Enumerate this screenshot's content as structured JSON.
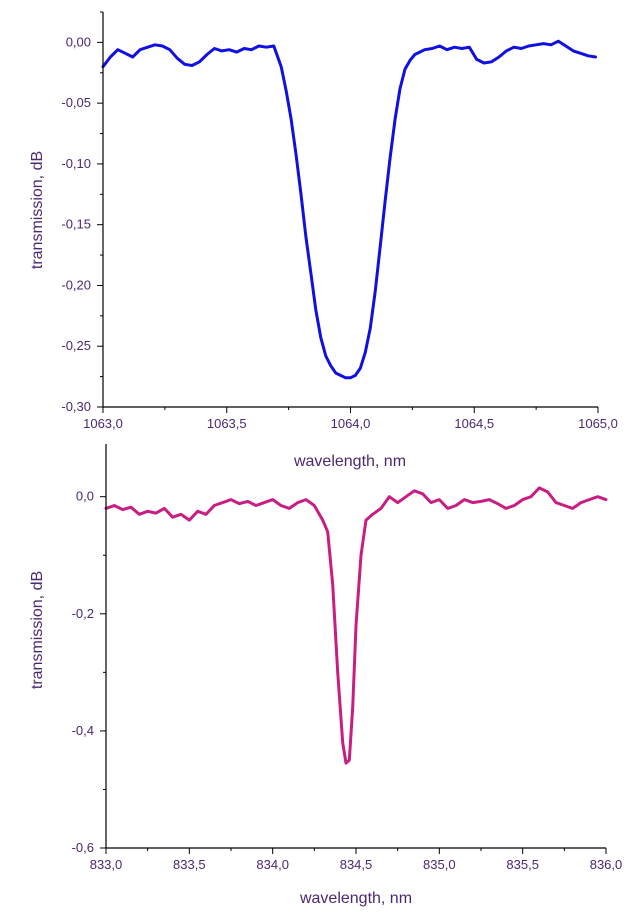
{
  "chart_data": [
    {
      "type": "line",
      "xlabel": "wavelength, nm",
      "ylabel": "transmission, dB",
      "xlim": [
        1063.0,
        1065.0
      ],
      "ylim": [
        -0.3,
        0.025
      ],
      "x_ticks": [
        "1063,0",
        "1063,5",
        "1064,0",
        "1064,5",
        "1065,0"
      ],
      "x_tick_values": [
        1063.0,
        1063.5,
        1064.0,
        1064.5,
        1065.0
      ],
      "y_ticks": [
        "0,00",
        "-0,05",
        "-0,10",
        "-0,15",
        "-0,20",
        "-0,25",
        "-0,30"
      ],
      "y_tick_values": [
        0.0,
        -0.05,
        -0.1,
        -0.15,
        -0.2,
        -0.25,
        -0.3
      ],
      "grid": false,
      "color": "#1010e0",
      "series": [
        {
          "x": [
            1063.0,
            1063.03,
            1063.06,
            1063.09,
            1063.12,
            1063.15,
            1063.18,
            1063.21,
            1063.24,
            1063.27,
            1063.3,
            1063.33,
            1063.36,
            1063.39,
            1063.42,
            1063.45,
            1063.48,
            1063.51,
            1063.54,
            1063.57,
            1063.6,
            1063.63,
            1063.66,
            1063.69,
            1063.72,
            1063.74,
            1063.76,
            1063.78,
            1063.8,
            1063.82,
            1063.84,
            1063.86,
            1063.88,
            1063.9,
            1063.92,
            1063.94,
            1063.96,
            1063.98,
            1064.0,
            1064.02,
            1064.04,
            1064.06,
            1064.08,
            1064.1,
            1064.12,
            1064.14,
            1064.16,
            1064.18,
            1064.2,
            1064.22,
            1064.24,
            1064.26,
            1064.28,
            1064.3,
            1064.33,
            1064.36,
            1064.39,
            1064.42,
            1064.45,
            1064.48,
            1064.51,
            1064.54,
            1064.57,
            1064.6,
            1064.63,
            1064.66,
            1064.69,
            1064.72,
            1064.75,
            1064.78,
            1064.81,
            1064.84,
            1064.87,
            1064.9,
            1064.93,
            1064.96,
            1064.99
          ],
          "y": [
            -0.02,
            -0.012,
            -0.006,
            -0.009,
            -0.012,
            -0.006,
            -0.004,
            -0.002,
            -0.003,
            -0.006,
            -0.013,
            -0.018,
            -0.019,
            -0.016,
            -0.01,
            -0.005,
            -0.007,
            -0.006,
            -0.008,
            -0.005,
            -0.006,
            -0.003,
            -0.004,
            -0.003,
            -0.02,
            -0.04,
            -0.063,
            -0.092,
            -0.125,
            -0.16,
            -0.19,
            -0.22,
            -0.243,
            -0.258,
            -0.266,
            -0.272,
            -0.274,
            -0.276,
            -0.276,
            -0.274,
            -0.268,
            -0.255,
            -0.235,
            -0.205,
            -0.168,
            -0.13,
            -0.095,
            -0.063,
            -0.038,
            -0.022,
            -0.015,
            -0.01,
            -0.008,
            -0.006,
            -0.005,
            -0.003,
            -0.006,
            -0.004,
            -0.005,
            -0.004,
            -0.014,
            -0.017,
            -0.016,
            -0.012,
            -0.007,
            -0.004,
            -0.005,
            -0.003,
            -0.002,
            -0.001,
            -0.002,
            0.001,
            -0.003,
            -0.007,
            -0.009,
            -0.011,
            -0.012
          ]
        }
      ]
    },
    {
      "type": "line",
      "xlabel": "wavelength, nm",
      "ylabel": "transmission, dB",
      "xlim": [
        833.0,
        836.0
      ],
      "ylim": [
        -0.6,
        0.09
      ],
      "x_ticks": [
        "833,0",
        "833,5",
        "834,0",
        "834,5",
        "835,0",
        "835,5",
        "836,0"
      ],
      "x_tick_values": [
        833.0,
        833.5,
        834.0,
        834.5,
        835.0,
        835.5,
        836.0
      ],
      "y_ticks": [
        "0,0",
        "-0,2",
        "-0,4",
        "-0,6"
      ],
      "y_tick_values": [
        0.0,
        -0.2,
        -0.4,
        -0.6
      ],
      "grid": false,
      "color": "#c81e82",
      "series": [
        {
          "x": [
            833.0,
            833.05,
            833.1,
            833.15,
            833.2,
            833.25,
            833.3,
            833.35,
            833.4,
            833.45,
            833.5,
            833.55,
            833.6,
            833.65,
            833.7,
            833.75,
            833.8,
            833.85,
            833.9,
            833.95,
            834.0,
            834.05,
            834.1,
            834.15,
            834.2,
            834.25,
            834.3,
            834.33,
            834.36,
            834.39,
            834.42,
            834.44,
            834.46,
            834.48,
            834.5,
            834.53,
            834.56,
            834.6,
            834.65,
            834.7,
            834.75,
            834.8,
            834.85,
            834.9,
            834.95,
            835.0,
            835.05,
            835.1,
            835.15,
            835.2,
            835.25,
            835.3,
            835.35,
            835.4,
            835.45,
            835.5,
            835.55,
            835.6,
            835.65,
            835.7,
            835.75,
            835.8,
            835.85,
            835.9,
            835.95,
            836.0
          ],
          "y": [
            -0.02,
            -0.015,
            -0.022,
            -0.018,
            -0.03,
            -0.025,
            -0.028,
            -0.02,
            -0.035,
            -0.03,
            -0.04,
            -0.025,
            -0.03,
            -0.015,
            -0.01,
            -0.005,
            -0.012,
            -0.008,
            -0.015,
            -0.01,
            -0.005,
            -0.015,
            -0.02,
            -0.01,
            -0.005,
            -0.015,
            -0.04,
            -0.06,
            -0.15,
            -0.3,
            -0.42,
            -0.455,
            -0.45,
            -0.36,
            -0.22,
            -0.1,
            -0.04,
            -0.03,
            -0.02,
            0.0,
            -0.01,
            0.0,
            0.01,
            0.005,
            -0.01,
            -0.005,
            -0.02,
            -0.015,
            -0.005,
            -0.01,
            -0.008,
            -0.005,
            -0.012,
            -0.02,
            -0.015,
            -0.005,
            0.0,
            0.015,
            0.008,
            -0.01,
            -0.015,
            -0.02,
            -0.01,
            -0.005,
            0.0,
            -0.005
          ]
        }
      ]
    }
  ]
}
